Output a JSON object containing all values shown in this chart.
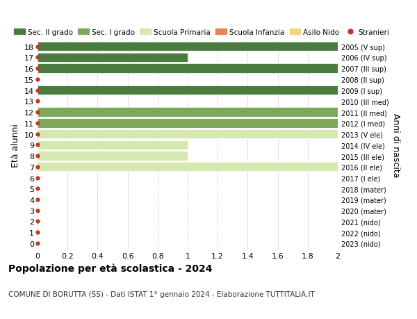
{
  "ages": [
    0,
    1,
    2,
    3,
    4,
    5,
    6,
    7,
    8,
    9,
    10,
    11,
    12,
    13,
    14,
    15,
    16,
    17,
    18
  ],
  "years": [
    "2023 (nido)",
    "2022 (nido)",
    "2021 (nido)",
    "2020 (mater)",
    "2019 (mater)",
    "2018 (mater)",
    "2017 (I ele)",
    "2016 (II ele)",
    "2015 (III ele)",
    "2014 (IV ele)",
    "2013 (V ele)",
    "2012 (I med)",
    "2011 (II med)",
    "2010 (III med)",
    "2009 (I sup)",
    "2008 (II sup)",
    "2007 (III sup)",
    "2006 (IV sup)",
    "2005 (V sup)"
  ],
  "values": [
    0,
    0,
    0,
    0,
    0,
    0,
    0,
    2,
    1,
    1,
    2,
    2,
    2,
    0,
    2,
    0,
    2,
    1,
    2
  ],
  "bar_colors": [
    "#d4e8b0",
    "#d4e8b0",
    "#d4e8b0",
    "#d4e8b0",
    "#d4e8b0",
    "#d4e8b0",
    "#d4e8b0",
    "#d4e8b0",
    "#d4e8b0",
    "#d4e8b0",
    "#d4e8b0",
    "#7da85a",
    "#7da85a",
    "#7da85a",
    "#4a7c3f",
    "#4a7c3f",
    "#4a7c3f",
    "#4a7c3f",
    "#4a7c3f"
  ],
  "stranieri_color": "#c0392b",
  "legend": [
    {
      "label": "Sec. II grado",
      "color": "#4a7c3f"
    },
    {
      "label": "Sec. I grado",
      "color": "#7da85a"
    },
    {
      "label": "Scuola Primaria",
      "color": "#d4e8b0"
    },
    {
      "label": "Scuola Infanzia",
      "color": "#e8845a"
    },
    {
      "label": "Asilo Nido",
      "color": "#f0d878"
    },
    {
      "label": "Stranieri",
      "color": "#c0392b"
    }
  ],
  "ylabel_left": "Età alunni",
  "ylabel_right": "Anni di nascita",
  "xlim": [
    0,
    2.0
  ],
  "xticks": [
    0,
    0.2,
    0.4,
    0.6,
    0.8,
    1.0,
    1.2,
    1.4,
    1.6,
    1.8,
    2.0
  ],
  "title": "Popolazione per età scolastica - 2024",
  "subtitle": "COMUNE DI BORUTTA (SS) - Dati ISTAT 1° gennaio 2024 - Elaborazione TUTTITALIA.IT",
  "bar_height": 0.85,
  "grid_color": "#cccccc",
  "fig_width": 6.0,
  "fig_height": 4.6,
  "dpi": 100
}
